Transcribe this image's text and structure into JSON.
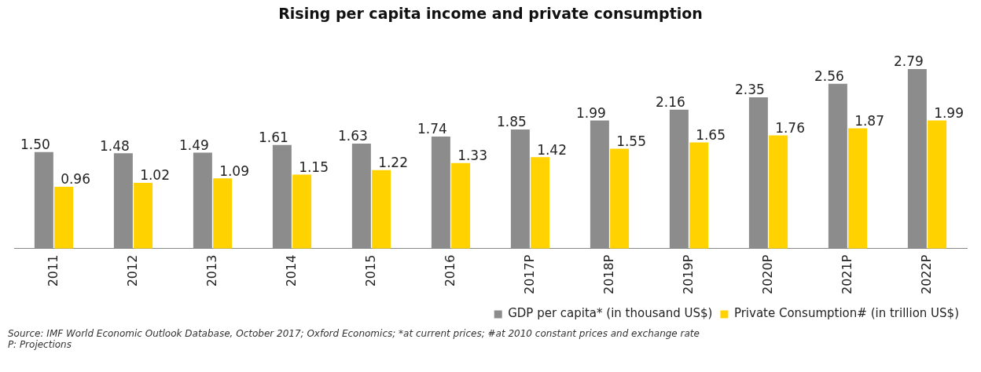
{
  "chart_data": {
    "type": "bar",
    "title": "Rising per capita income and private consumption",
    "categories": [
      "2011",
      "2012",
      "2013",
      "2014",
      "2015",
      "2016",
      "2017P",
      "2018P",
      "2019P",
      "2020P",
      "2021P",
      "2022P"
    ],
    "series": [
      {
        "name": "GDP per capita* (in thousand US$)",
        "color": "#8c8c8c",
        "values": [
          1.5,
          1.48,
          1.49,
          1.61,
          1.63,
          1.74,
          1.85,
          1.99,
          2.16,
          2.35,
          2.56,
          2.79
        ],
        "value_labels": [
          "1.50",
          "1.48",
          "1.49",
          "1.61",
          "1.63",
          "1.74",
          "1.85",
          "1.99",
          "2.16",
          "2.35",
          "2.56",
          "2.79"
        ]
      },
      {
        "name": "Private Consumption# (in trillion US$)",
        "color": "#ffd200",
        "values": [
          0.96,
          1.02,
          1.09,
          1.15,
          1.22,
          1.33,
          1.42,
          1.55,
          1.65,
          1.76,
          1.87,
          1.99
        ],
        "value_labels": [
          "0.96",
          "1.02",
          "1.09",
          "1.15",
          "1.22",
          "1.33",
          "1.42",
          "1.55",
          "1.65",
          "1.76",
          "1.87",
          "1.99"
        ]
      }
    ],
    "legend": "bottom right",
    "grid": false,
    "annotations": [
      "Source: IMF World Economic Outlook Database, October 2017; Oxford Economics; *at current prices; #at 2010 constant prices and exchange rate",
      "P: Projections"
    ]
  }
}
